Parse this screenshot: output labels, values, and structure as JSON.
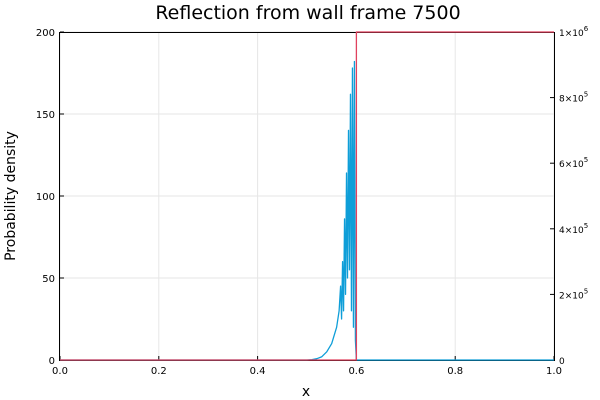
{
  "chart_data": {
    "type": "line",
    "title": "Reflection from wall frame 7500",
    "xlabel": "x",
    "ylabel": "Probability density",
    "xlim": [
      0,
      1
    ],
    "ylim": [
      0,
      200
    ],
    "y2lim": [
      0,
      1000000
    ],
    "grid": true,
    "legend": "none",
    "x_ticks": [
      "0.0",
      "0.2",
      "0.4",
      "0.6",
      "0.8",
      "1.0"
    ],
    "x_tick_values": [
      0,
      0.2,
      0.4,
      0.6,
      0.8,
      1.0
    ],
    "y_ticks": [
      "0",
      "50",
      "100",
      "150",
      "200"
    ],
    "y_tick_values": [
      0,
      50,
      100,
      150,
      200
    ],
    "y2_ticks": [
      {
        "value": 0,
        "base": "0",
        "exp": ""
      },
      {
        "value": 200000,
        "base": "2×10",
        "exp": "5"
      },
      {
        "value": 400000,
        "base": "4×10",
        "exp": "5"
      },
      {
        "value": 600000,
        "base": "6×10",
        "exp": "5"
      },
      {
        "value": 800000,
        "base": "8×10",
        "exp": "5"
      },
      {
        "value": 1000000,
        "base": "1×10",
        "exp": "6"
      }
    ],
    "series": [
      {
        "axis": "left",
        "color": "#0e9ed8",
        "points": [
          [
            0.0,
            0
          ],
          [
            0.5,
            0
          ],
          [
            0.51,
            0.2
          ],
          [
            0.52,
            0.8
          ],
          [
            0.53,
            2
          ],
          [
            0.54,
            5
          ],
          [
            0.55,
            10
          ],
          [
            0.56,
            20
          ],
          [
            0.565,
            30
          ],
          [
            0.568,
            45
          ],
          [
            0.57,
            25
          ],
          [
            0.572,
            60
          ],
          [
            0.574,
            30
          ],
          [
            0.576,
            86
          ],
          [
            0.578,
            40
          ],
          [
            0.58,
            114
          ],
          [
            0.582,
            50
          ],
          [
            0.584,
            140
          ],
          [
            0.586,
            55
          ],
          [
            0.588,
            162
          ],
          [
            0.59,
            30
          ],
          [
            0.592,
            178
          ],
          [
            0.594,
            20
          ],
          [
            0.596,
            182
          ],
          [
            0.598,
            12
          ],
          [
            0.6,
            0
          ],
          [
            1.0,
            0
          ]
        ]
      },
      {
        "axis": "right",
        "color": "#e0415e",
        "points": [
          [
            0.0,
            0
          ],
          [
            0.6,
            0
          ],
          [
            0.6,
            1000000
          ],
          [
            1.0,
            1000000
          ]
        ]
      }
    ]
  }
}
